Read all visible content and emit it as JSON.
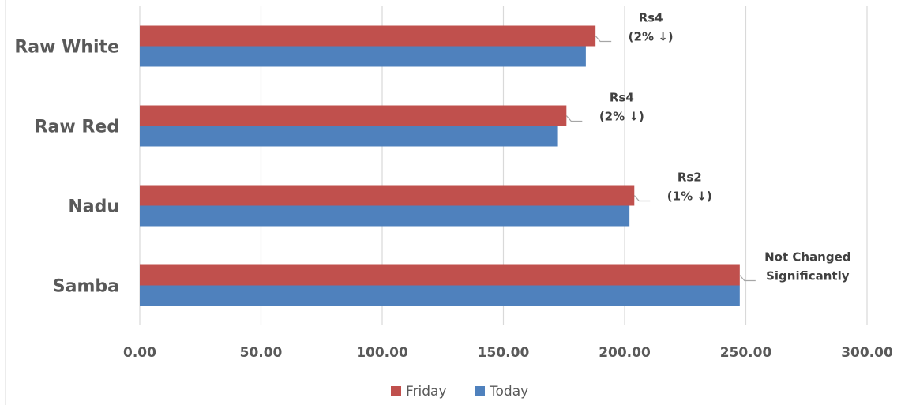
{
  "chart_data": {
    "type": "bar",
    "orientation": "horizontal",
    "title": "",
    "xlabel": "",
    "ylabel": "",
    "categories": [
      "Samba",
      "Nadu",
      "Raw Red",
      "Raw White"
    ],
    "series": [
      {
        "name": "Friday",
        "color": "#C0504D",
        "values": [
          247.5,
          204.0,
          176.0,
          188.0
        ]
      },
      {
        "name": "Today",
        "color": "#4F81BD",
        "values": [
          247.5,
          202.0,
          172.5,
          184.0
        ]
      }
    ],
    "xlim": [
      0,
      300
    ],
    "x_ticks": [
      "0.00",
      "50.00",
      "100.00",
      "150.00",
      "200.00",
      "250.00",
      "300.00"
    ],
    "grid": true,
    "legend_position": "bottom",
    "annotations": [
      {
        "category": "Samba",
        "lines": [
          "Not Changed",
          "Significantly"
        ]
      },
      {
        "category": "Nadu",
        "lines": [
          "Rs2",
          "(1% ↓)"
        ]
      },
      {
        "category": "Raw Red",
        "lines": [
          "Rs4",
          "(2% ↓)"
        ]
      },
      {
        "category": "Raw White",
        "lines": [
          "Rs4",
          "(2% ↓)"
        ]
      }
    ]
  }
}
